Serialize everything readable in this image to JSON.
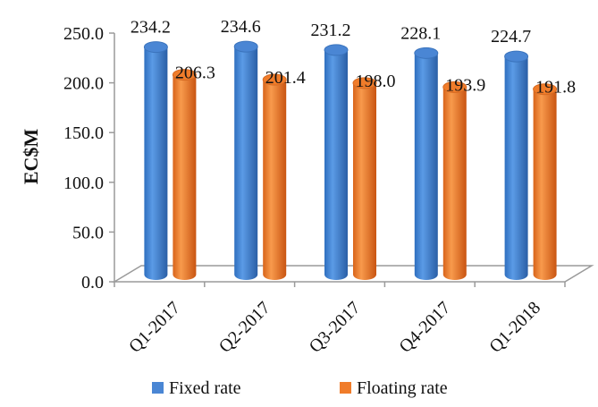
{
  "chart_data": {
    "type": "bar",
    "style": "3d-cylinder",
    "categories": [
      "Q1-2017",
      "Q2-2017",
      "Q3-2017",
      "Q4-2017",
      "Q1-2018"
    ],
    "series": [
      {
        "name": "Fixed rate",
        "color": "#4a86d4",
        "values": [
          234.2,
          234.6,
          231.2,
          228.1,
          224.7
        ]
      },
      {
        "name": "Floating rate",
        "color": "#f07c2a",
        "values": [
          206.3,
          201.4,
          198.0,
          193.9,
          191.8
        ]
      }
    ],
    "title": "",
    "xlabel": "",
    "ylabel": "EC$M",
    "ylim": [
      0,
      250
    ],
    "yticks": [
      "0.0",
      "50.0",
      "100.0",
      "150.0",
      "200.0",
      "250.0"
    ],
    "data_labels": [
      [
        "234.2",
        "234.6",
        "231.2",
        "228.1",
        "224.7"
      ],
      [
        "206.3",
        "201.4",
        "198.0",
        "193.9",
        "191.8"
      ]
    ],
    "legend_position": "bottom",
    "grid": false
  }
}
